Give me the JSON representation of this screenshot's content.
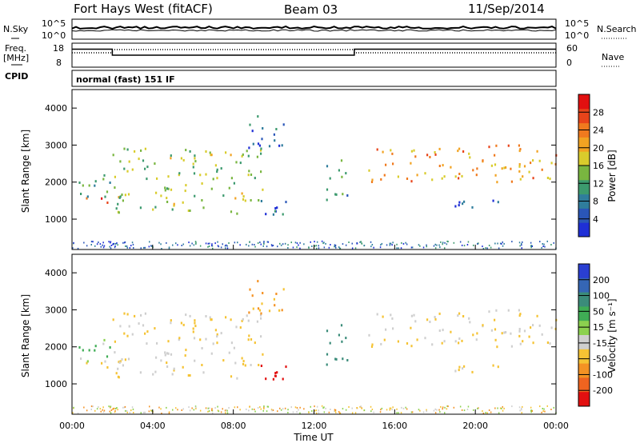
{
  "header": {
    "title": "Fort Hays West (fitACF)",
    "beam": "Beam 03",
    "date": "11/Sep/2014"
  },
  "strip_labels": {
    "nsky": "N.Sky",
    "nsearch": "N.Search",
    "freq_line1": "Freq.",
    "freq_line2": "[MHz]",
    "nave": "Nave",
    "cpid": "CPID",
    "cpid_value": "normal (fast) 151 IF",
    "noise_ticks": [
      "10^5",
      "10^0"
    ],
    "freq_ticks": [
      "18",
      "8"
    ],
    "nave_ticks": [
      "60",
      "0"
    ]
  },
  "axes": {
    "ylabel": "Slant Range [km]",
    "xlabel": "Time UT",
    "xticks": [
      "00:00",
      "04:00",
      "08:00",
      "12:00",
      "16:00",
      "20:00",
      "00:00"
    ],
    "yticks": [
      "1000",
      "2000",
      "3000",
      "4000"
    ]
  },
  "power_colorbar": {
    "label": "Power [dB]",
    "ticks": [
      "4",
      "8",
      "12",
      "16",
      "20",
      "24",
      "28"
    ],
    "colors": [
      "#1f2fd6",
      "#2a56b8",
      "#2f7d9c",
      "#3c9a6e",
      "#79b640",
      "#d9cc2c",
      "#f2a322",
      "#f07a1e",
      "#e8441a",
      "#e21010"
    ]
  },
  "velocity_colorbar": {
    "label": "Velocity [m s⁻¹]",
    "ticks": [
      "200",
      "100",
      "50",
      "15",
      "-15",
      "-50",
      "-100",
      "-200"
    ],
    "colors": [
      "#2a3fd2",
      "#3566b5",
      "#3b8c7a",
      "#3fad55",
      "#8cd14f",
      "#cfcfcf",
      "#f5c334",
      "#f49224",
      "#ef6420",
      "#e21010"
    ]
  },
  "chart_data": {
    "type": "heatmap",
    "title": "Fort Hays West (fitACF)",
    "xlabel": "Time UT",
    "ylabel": "Slant Range [km]",
    "xlim": [
      0,
      24
    ],
    "ylim": [
      180,
      4500
    ],
    "frequency_mhz": [
      {
        "x": 0,
        "y": 12
      },
      {
        "x": 2,
        "y": 12
      },
      {
        "x": 2,
        "y": 10
      },
      {
        "x": 14,
        "y": 10
      },
      {
        "x": 14,
        "y": 12
      },
      {
        "x": 24,
        "y": 12
      }
    ],
    "nave": [
      {
        "x": 0,
        "y": 18
      },
      {
        "x": 2,
        "y": 18
      },
      {
        "x": 2,
        "y": 22
      },
      {
        "x": 14,
        "y": 22
      },
      {
        "x": 14,
        "y": 18
      },
      {
        "x": 24,
        "y": 18
      }
    ],
    "echo_bands": [
      {
        "t0": 0.0,
        "t1": 2.0,
        "r0": 1400,
        "r1": 1600,
        "power_db": 26,
        "velocity": -15
      },
      {
        "t0": 0.0,
        "t1": 2.0,
        "r0": 1600,
        "r1": 2300,
        "power_db": 10,
        "velocity": 15
      },
      {
        "t0": 2.0,
        "t1": 9.5,
        "r0": 1100,
        "r1": 2900,
        "power_db": 14,
        "velocity": -15
      },
      {
        "t0": 9.0,
        "t1": 10.8,
        "r0": 1000,
        "r1": 1600,
        "power_db": 6,
        "velocity": -200
      },
      {
        "t0": 8.5,
        "t1": 10.5,
        "r0": 2800,
        "r1": 3800,
        "power_db": 6,
        "velocity": -50
      },
      {
        "t0": 12.5,
        "t1": 13.8,
        "r0": 1500,
        "r1": 2600,
        "power_db": 10,
        "velocity": 50
      },
      {
        "t0": 14.5,
        "t1": 24.0,
        "r0": 2000,
        "r1": 3000,
        "power_db": 20,
        "velocity": -15
      },
      {
        "t0": 16.5,
        "t1": 21.5,
        "r0": 1300,
        "r1": 1500,
        "power_db": 5,
        "velocity": -15
      }
    ]
  }
}
